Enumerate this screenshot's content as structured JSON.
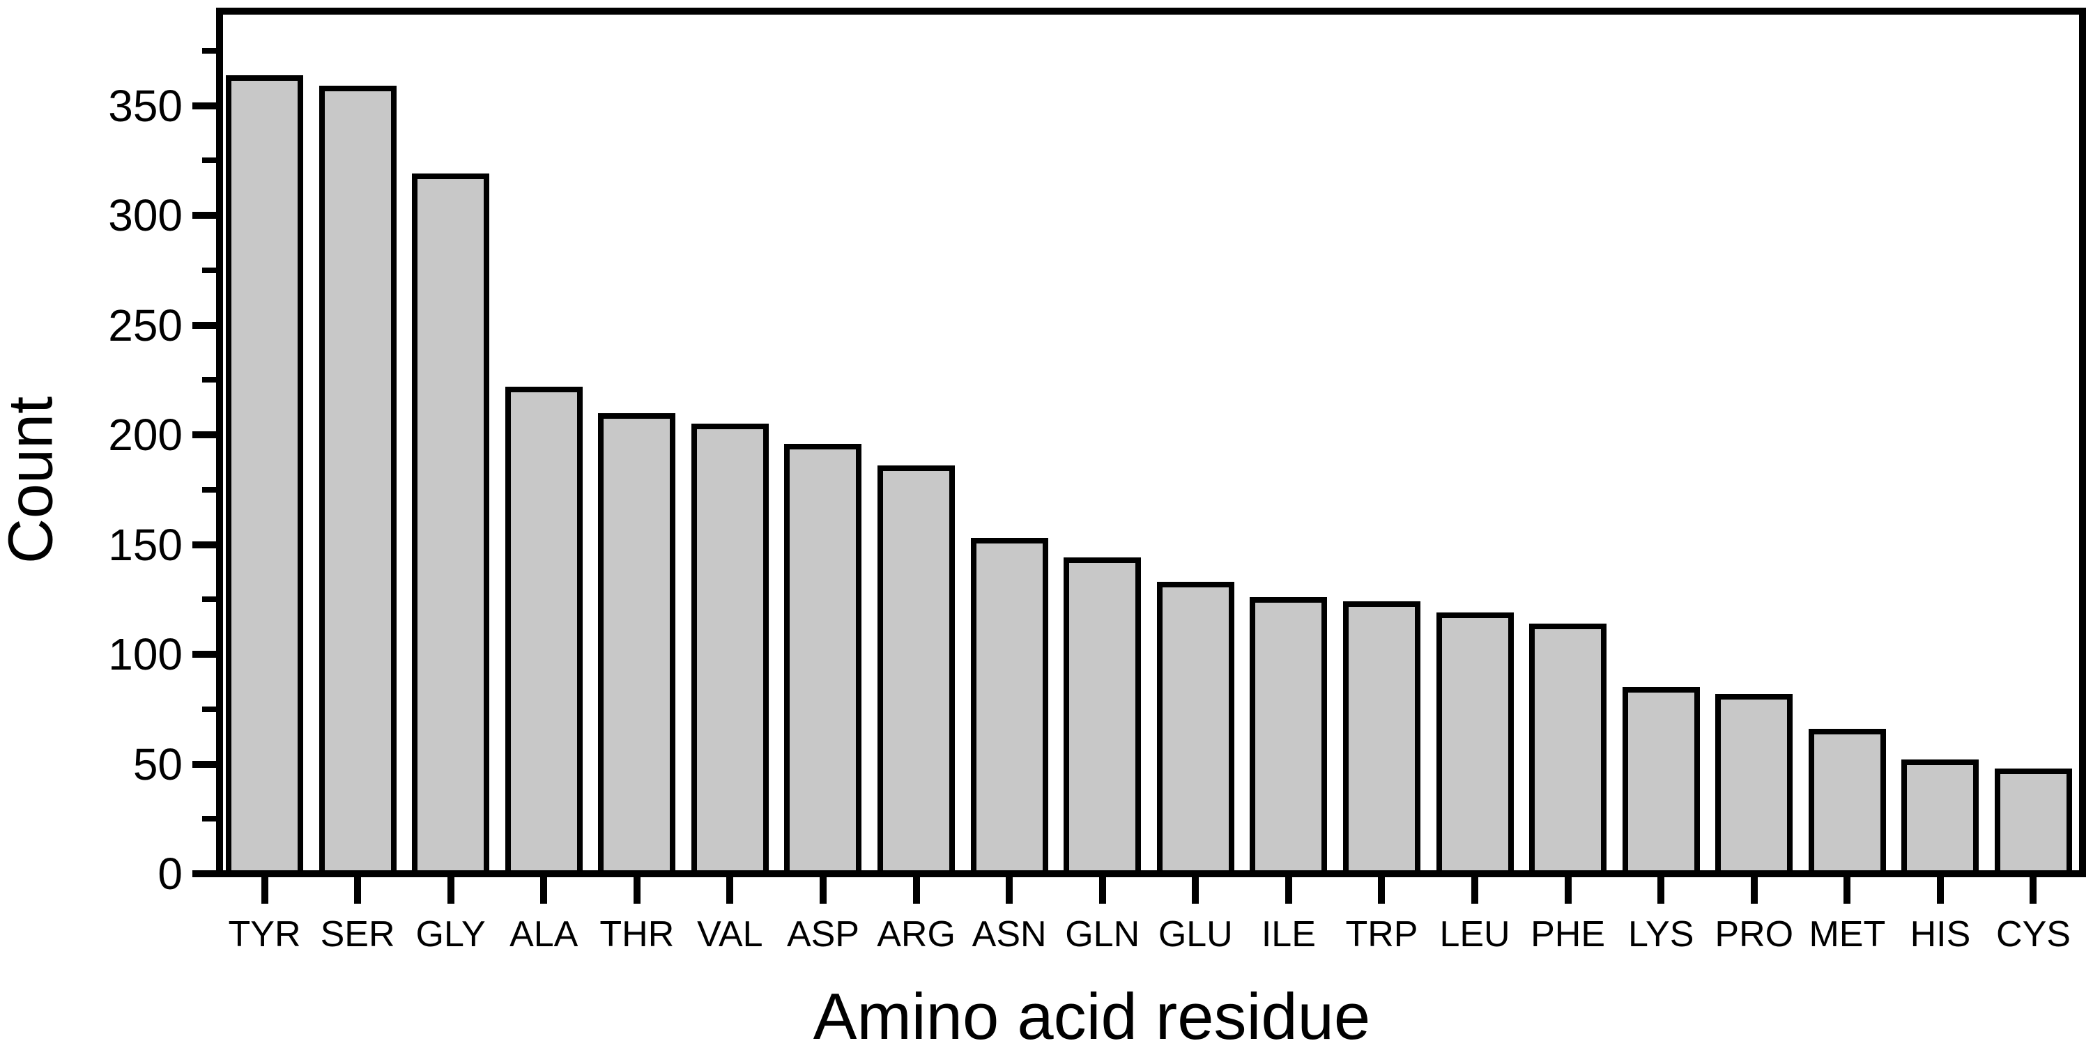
{
  "figure": {
    "background": "#ffffff",
    "axis_color": "#000000"
  },
  "chart_data": {
    "type": "bar",
    "title": "",
    "xlabel": "Amino acid residue",
    "ylabel": "Count",
    "categories": [
      "TYR",
      "SER",
      "GLY",
      "ALA",
      "THR",
      "VAL",
      "ASP",
      "ARG",
      "ASN",
      "GLN",
      "GLU",
      "ILE",
      "TRP",
      "LEU",
      "PHE",
      "LYS",
      "PRO",
      "MET",
      "HIS",
      "CYS"
    ],
    "values": [
      364,
      359,
      319,
      222,
      210,
      205,
      196,
      186,
      153,
      144,
      133,
      126,
      124,
      119,
      114,
      85,
      82,
      66,
      52,
      48
    ],
    "ylim": [
      0,
      393
    ],
    "yticks_major": [
      0,
      50,
      100,
      150,
      200,
      250,
      300,
      350
    ],
    "ytick_labels": [
      "0",
      "50",
      "100",
      "150",
      "200",
      "250",
      "300",
      "350"
    ],
    "yticks_minor": [
      25,
      75,
      125,
      175,
      225,
      275,
      325,
      375
    ],
    "grid": false,
    "legend": null,
    "bar_fill": "#c8c8c8",
    "bar_edge": "#000000"
  }
}
